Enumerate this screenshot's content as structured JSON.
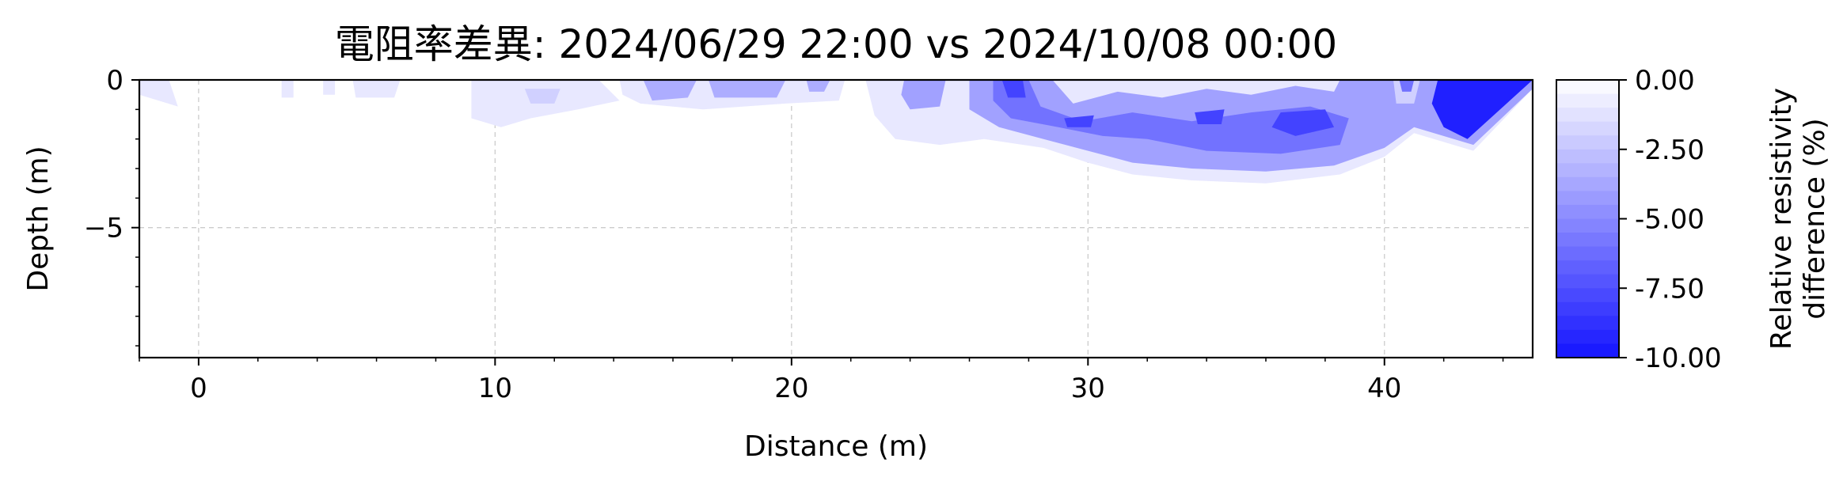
{
  "chart_data": {
    "type": "heatmap",
    "title": "電阻率差異: 2024/06/29 22:00 vs 2024/10/08 00:00",
    "xlabel": "Distance (m)",
    "ylabel": "Depth (m)",
    "xlim": [
      -2.0,
      45.0
    ],
    "ylim": [
      -9.4,
      0.0
    ],
    "x_ticks": [
      0,
      10,
      20,
      30,
      40
    ],
    "x_tick_labels": [
      "0",
      "10",
      "20",
      "30",
      "40"
    ],
    "y_ticks": [
      0,
      -5
    ],
    "y_tick_labels": [
      "0",
      "−5"
    ],
    "grid": true,
    "colorbar": {
      "label": [
        "Relative resistivity",
        "difference (%)"
      ],
      "vmin": -10.0,
      "vmax": 0.0,
      "ticks": [
        0.0,
        -2.5,
        -5.0,
        -7.5,
        -10.0
      ],
      "tick_labels": [
        "0.00",
        "-2.50",
        "-5.00",
        "-7.50",
        "-10.00"
      ],
      "levels": 20,
      "color_low": "#1414ff",
      "color_high": "#ffffff"
    },
    "regions": [
      {
        "value": -1.0,
        "points": [
          [
            -2.0,
            0
          ],
          [
            -1.0,
            0
          ],
          [
            -0.7,
            -0.9
          ],
          [
            -2.0,
            -0.5
          ]
        ]
      },
      {
        "value": -1.0,
        "points": [
          [
            2.8,
            0
          ],
          [
            3.2,
            0
          ],
          [
            3.2,
            -0.6
          ],
          [
            2.8,
            -0.6
          ]
        ]
      },
      {
        "value": -1.0,
        "points": [
          [
            4.2,
            0
          ],
          [
            4.6,
            0
          ],
          [
            4.6,
            -0.5
          ],
          [
            4.2,
            -0.5
          ]
        ]
      },
      {
        "value": -1.0,
        "points": [
          [
            5.2,
            0
          ],
          [
            6.8,
            0
          ],
          [
            6.6,
            -0.6
          ],
          [
            5.3,
            -0.6
          ]
        ]
      },
      {
        "value": -1.0,
        "points": [
          [
            9.2,
            0
          ],
          [
            13.5,
            0
          ],
          [
            14.2,
            -0.7
          ],
          [
            12.8,
            -1.0
          ],
          [
            11.2,
            -1.3
          ],
          [
            10.2,
            -1.6
          ],
          [
            9.2,
            -1.3
          ]
        ]
      },
      {
        "value": -2.0,
        "points": [
          [
            11.0,
            -0.3
          ],
          [
            12.2,
            -0.3
          ],
          [
            12.0,
            -0.8
          ],
          [
            11.2,
            -0.8
          ]
        ]
      },
      {
        "value": -1.0,
        "points": [
          [
            14.2,
            0
          ],
          [
            21.8,
            0
          ],
          [
            21.6,
            -0.7
          ],
          [
            19.8,
            -0.8
          ],
          [
            17.0,
            -1.0
          ],
          [
            14.9,
            -0.8
          ],
          [
            14.3,
            -0.5
          ]
        ]
      },
      {
        "value": -3.5,
        "points": [
          [
            15.0,
            0
          ],
          [
            16.8,
            0
          ],
          [
            16.5,
            -0.6
          ],
          [
            15.3,
            -0.7
          ]
        ]
      },
      {
        "value": -3.5,
        "points": [
          [
            17.2,
            0
          ],
          [
            19.8,
            0
          ],
          [
            19.5,
            -0.6
          ],
          [
            17.4,
            -0.6
          ]
        ]
      },
      {
        "value": -3.5,
        "points": [
          [
            20.5,
            0
          ],
          [
            21.3,
            0
          ],
          [
            21.1,
            -0.4
          ],
          [
            20.6,
            -0.4
          ]
        ]
      },
      {
        "value": -1.0,
        "points": [
          [
            22.5,
            0
          ],
          [
            45.0,
            0
          ],
          [
            45.0,
            -0.3
          ],
          [
            43.0,
            -2.4
          ],
          [
            41.0,
            -1.8
          ],
          [
            40.0,
            -2.6
          ],
          [
            38.5,
            -3.2
          ],
          [
            36.0,
            -3.5
          ],
          [
            33.5,
            -3.4
          ],
          [
            31.5,
            -3.2
          ],
          [
            30.0,
            -2.8
          ],
          [
            28.5,
            -2.3
          ],
          [
            26.5,
            -2.0
          ],
          [
            25.0,
            -2.2
          ],
          [
            23.5,
            -2.0
          ],
          [
            22.8,
            -1.2
          ]
        ]
      },
      {
        "value": -4.0,
        "points": [
          [
            23.8,
            0
          ],
          [
            25.2,
            0
          ],
          [
            25.0,
            -0.9
          ],
          [
            24.0,
            -1.0
          ],
          [
            23.7,
            -0.5
          ]
        ]
      },
      {
        "value": -4.0,
        "points": [
          [
            26.0,
            0
          ],
          [
            28.8,
            0
          ],
          [
            29.5,
            -0.8
          ],
          [
            31.0,
            -0.4
          ],
          [
            32.5,
            -0.6
          ],
          [
            34.0,
            -0.3
          ],
          [
            35.5,
            -0.5
          ],
          [
            37.0,
            -0.2
          ],
          [
            38.3,
            -0.4
          ],
          [
            38.5,
            0
          ],
          [
            45.0,
            0
          ],
          [
            45.0,
            -0.3
          ],
          [
            43.0,
            -2.2
          ],
          [
            41.0,
            -1.6
          ],
          [
            40.0,
            -2.3
          ],
          [
            38.3,
            -2.9
          ],
          [
            36.0,
            -3.1
          ],
          [
            33.5,
            -3.0
          ],
          [
            31.5,
            -2.8
          ],
          [
            30.0,
            -2.4
          ],
          [
            28.5,
            -2.0
          ],
          [
            27.0,
            -1.6
          ],
          [
            26.0,
            -1.0
          ]
        ]
      },
      {
        "value": -6.0,
        "points": [
          [
            26.8,
            0
          ],
          [
            28.0,
            0
          ],
          [
            28.4,
            -0.9
          ],
          [
            29.8,
            -1.4
          ],
          [
            31.5,
            -1.1
          ],
          [
            33.5,
            -1.4
          ],
          [
            35.5,
            -1.1
          ],
          [
            37.5,
            -0.9
          ],
          [
            38.8,
            -1.3
          ],
          [
            38.5,
            -2.2
          ],
          [
            36.5,
            -2.5
          ],
          [
            34.0,
            -2.4
          ],
          [
            32.0,
            -2.0
          ],
          [
            30.5,
            -1.9
          ],
          [
            29.0,
            -1.6
          ],
          [
            27.4,
            -1.3
          ],
          [
            26.8,
            -0.7
          ]
        ]
      },
      {
        "value": -8.0,
        "points": [
          [
            27.1,
            0
          ],
          [
            27.8,
            0
          ],
          [
            27.9,
            -0.6
          ],
          [
            27.3,
            -0.6
          ]
        ]
      },
      {
        "value": -8.0,
        "points": [
          [
            33.6,
            -1.1
          ],
          [
            34.6,
            -1.0
          ],
          [
            34.5,
            -1.5
          ],
          [
            33.7,
            -1.5
          ]
        ]
      },
      {
        "value": -8.0,
        "points": [
          [
            36.5,
            -1.1
          ],
          [
            38.0,
            -1.0
          ],
          [
            38.3,
            -1.6
          ],
          [
            37.0,
            -1.9
          ],
          [
            36.2,
            -1.6
          ]
        ]
      },
      {
        "value": -8.0,
        "points": [
          [
            29.2,
            -1.3
          ],
          [
            30.2,
            -1.2
          ],
          [
            30.1,
            -1.6
          ],
          [
            29.3,
            -1.6
          ]
        ]
      },
      {
        "value": -2.0,
        "points": [
          [
            40.3,
            0
          ],
          [
            41.2,
            0
          ],
          [
            41.0,
            -0.8
          ],
          [
            40.4,
            -0.8
          ]
        ]
      },
      {
        "value": -6.0,
        "points": [
          [
            40.5,
            0
          ],
          [
            41.0,
            0
          ],
          [
            40.9,
            -0.4
          ],
          [
            40.6,
            -0.4
          ]
        ]
      },
      {
        "value": -9.5,
        "points": [
          [
            41.8,
            0
          ],
          [
            45.0,
            0
          ],
          [
            42.8,
            -2.0
          ],
          [
            42.0,
            -1.6
          ],
          [
            41.6,
            -0.8
          ]
        ]
      }
    ]
  }
}
